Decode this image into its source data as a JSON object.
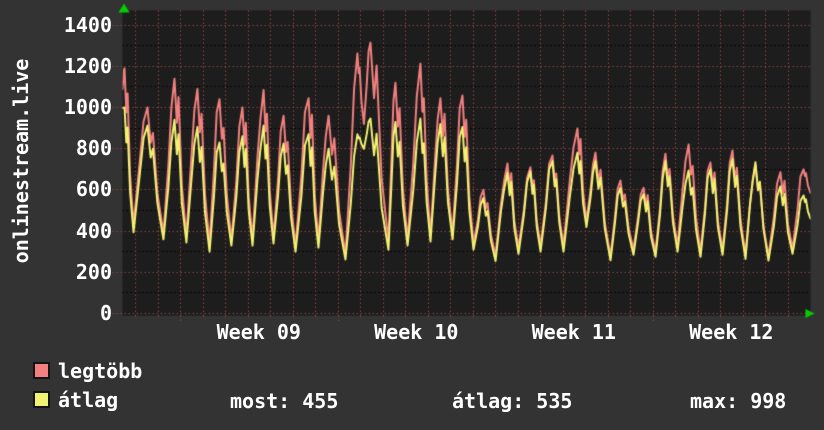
{
  "panel": {
    "background": "#333333",
    "text_color": "#ffffff"
  },
  "chart_data": {
    "type": "line",
    "title": "onlinestream.live",
    "x_tick_labels": [
      "Week 09",
      "Week 10",
      "Week 11",
      "Week 12"
    ],
    "y_tick_values": [
      0,
      200,
      400,
      600,
      800,
      1000,
      1200,
      1400
    ],
    "y_minor_step": 100,
    "ylim": [
      0,
      1470
    ],
    "x_axis": {
      "days_shown": 30.58,
      "first_grid_offset_days": 0.58,
      "week_boundary_offset_days": 2.58,
      "week_length_days": 7
    },
    "grid": {
      "plot_bg": "#1d1d1d",
      "major_line_color": "#8f4242",
      "minor_line_color": "#5f5f5f",
      "arrow_color": "#00cf00"
    },
    "t_peaks": [
      0.09,
      1.11,
      2.31,
      3.33,
      4.31,
      5.33,
      6.27,
      7.16,
      8.27,
      9.16,
      10.44,
      11.02,
      12.13,
      13.24,
      14.13,
      15.11,
      16.04,
      17.11,
      18.13,
      19.11,
      20.22,
      21.02,
      22.13,
      23.16,
      24.13,
      25.16,
      26.13,
      27.11,
      28.13,
      29.24,
      30.27
    ],
    "t_troughs": [
      0.0,
      0.49,
      1.82,
      2.84,
      3.87,
      4.84,
      5.78,
      6.71,
      7.69,
      8.71,
      9.91,
      10.73,
      11.82,
      12.67,
      13.69,
      14.67,
      15.6,
      16.58,
      17.6,
      18.58,
      19.6,
      20.62,
      21.69,
      22.71,
      23.69,
      24.67,
      25.69,
      26.67,
      27.69,
      28.71,
      29.78
    ],
    "t_end": 30.58,
    "series": [
      {
        "name": "legtöbb",
        "color": "#f28080",
        "peaks": [
          1190,
          1000,
          1140,
          1090,
          1040,
          1000,
          1085,
          960,
          1045,
          960,
          1262,
          1315,
          1120,
          1213,
          1045,
          1058,
          600,
          728,
          710,
          767,
          898,
          781,
          645,
          610,
          776,
          820,
          733,
          791,
          720,
          686,
          700
        ],
        "troughs": [
          1090,
          430,
          390,
          375,
          340,
          355,
          360,
          370,
          330,
          355,
          285,
          920,
          350,
          360,
          380,
          390,
          340,
          280,
          320,
          330,
          330,
          450,
          280,
          310,
          300,
          330,
          300,
          310,
          290,
          280,
          315
        ],
        "end_value": 585
      },
      {
        "name": "átlag",
        "color": "#f2f272",
        "peaks": [
          1000,
          912,
          940,
          905,
          830,
          860,
          912,
          825,
          870,
          800,
          870,
          946,
          930,
          946,
          920,
          905,
          560,
          684,
          690,
          740,
          781,
          740,
          610,
          580,
          740,
          694,
          700,
          750,
          734,
          617,
          573
        ],
        "troughs": [
          998,
          395,
          360,
          345,
          300,
          330,
          330,
          340,
          300,
          320,
          262,
          800,
          310,
          330,
          350,
          360,
          310,
          255,
          290,
          300,
          300,
          420,
          258,
          285,
          275,
          300,
          275,
          285,
          265,
          257,
          290
        ],
        "end_value": 460
      }
    ]
  },
  "stats": [
    {
      "text": "most: 455"
    },
    {
      "text": "átlag: 535"
    },
    {
      "text": "max: 998"
    }
  ]
}
